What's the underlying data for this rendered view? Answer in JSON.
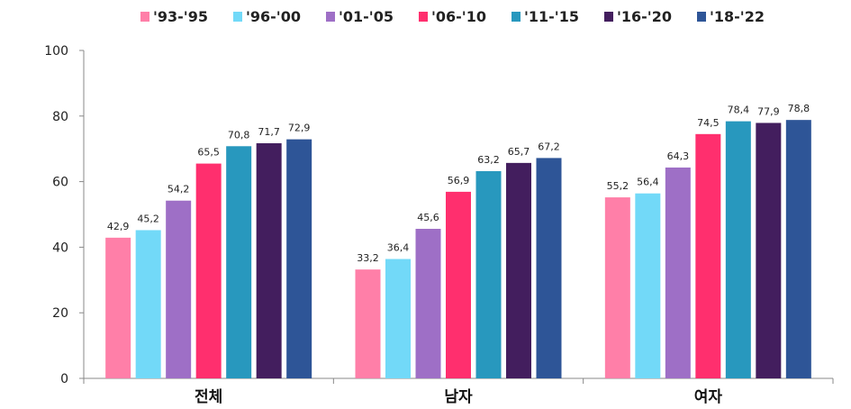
{
  "chart_data": {
    "type": "bar",
    "title": "",
    "xlabel": "",
    "ylabel": "",
    "ylim": [
      0,
      100
    ],
    "yticks": [
      0,
      20,
      40,
      60,
      80,
      100
    ],
    "legend_position": "top",
    "categories": [
      "전체",
      "남자",
      "여자"
    ],
    "series": [
      {
        "name": "'93-'95",
        "color": "#FF7FA8",
        "values": [
          42.9,
          33.2,
          55.2
        ],
        "labels": [
          "42,9",
          "33,2",
          "55,2"
        ]
      },
      {
        "name": "'96-'00",
        "color": "#72D9F8",
        "values": [
          45.2,
          36.4,
          56.4
        ],
        "labels": [
          "45,2",
          "36,4",
          "56,4"
        ]
      },
      {
        "name": "'01-'05",
        "color": "#9E6FC6",
        "values": [
          54.2,
          45.6,
          64.3
        ],
        "labels": [
          "54,2",
          "45,6",
          "64,3"
        ]
      },
      {
        "name": "'06-'10",
        "color": "#FF2F6E",
        "values": [
          65.5,
          56.9,
          74.5
        ],
        "labels": [
          "65,5",
          "56,9",
          "74,5"
        ]
      },
      {
        "name": "'11-'15",
        "color": "#2898BE",
        "values": [
          70.8,
          63.2,
          78.4
        ],
        "labels": [
          "70,8",
          "63,2",
          "78,4"
        ]
      },
      {
        "name": "'16-'20",
        "color": "#431E5E",
        "values": [
          71.7,
          65.7,
          77.9
        ],
        "labels": [
          "71,7",
          "65,7",
          "77,9"
        ]
      },
      {
        "name": "'18-'22",
        "color": "#2E5597",
        "values": [
          72.9,
          67.2,
          78.8
        ],
        "labels": [
          "72,9",
          "67,2",
          "78,8"
        ]
      }
    ]
  }
}
